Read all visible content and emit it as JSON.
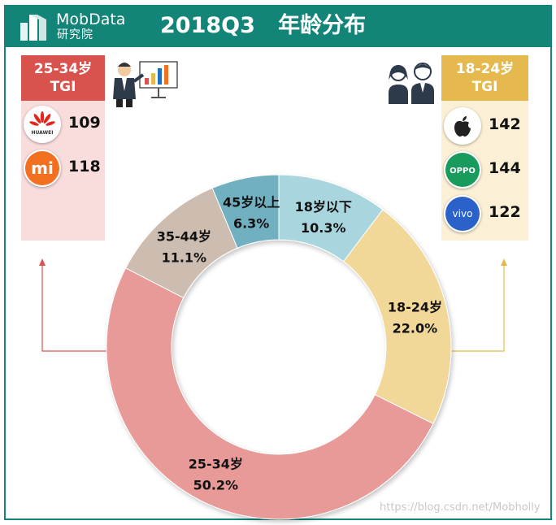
{
  "header": {
    "brand_name": "MobData",
    "brand_sub": "研究院",
    "title": "2018Q3   年龄分布"
  },
  "left_panel": {
    "heading_line1": "25-34岁",
    "heading_line2": "TGI",
    "brands": [
      {
        "icon": "huawei-logo-icon",
        "logo_text": "HUAWEI",
        "value": "109"
      },
      {
        "icon": "xiaomi-logo-icon",
        "logo_text": "mi",
        "value": "118"
      }
    ]
  },
  "right_panel": {
    "heading_line1": "18-24岁",
    "heading_line2": "TGI",
    "brands": [
      {
        "icon": "apple-logo-icon",
        "value": "142"
      },
      {
        "icon": "oppo-logo-icon",
        "logo_text": "OPPO",
        "value": "144"
      },
      {
        "icon": "vivo-logo-icon",
        "logo_text": "vivo",
        "value": "122"
      }
    ]
  },
  "chart_data": {
    "type": "pie",
    "variant": "donut",
    "title": "2018Q3   年龄分布",
    "categories": [
      "18岁以下",
      "18-24岁",
      "25-34岁",
      "35-44岁",
      "45岁以上"
    ],
    "values": [
      10.3,
      22.0,
      50.2,
      11.1,
      6.3
    ],
    "value_labels": [
      "10.3%",
      "22.0%",
      "50.2%",
      "11.1%",
      "6.3%"
    ],
    "colors": [
      "#a9d6de",
      "#f1d898",
      "#e89a98",
      "#cdbdb1",
      "#6fb0c0"
    ]
  },
  "watermark": "https://blog.csdn.net/Mobholly",
  "colors": {
    "teal": "#138578",
    "red_accent": "#d9534e",
    "gold_accent": "#e5b94d"
  }
}
